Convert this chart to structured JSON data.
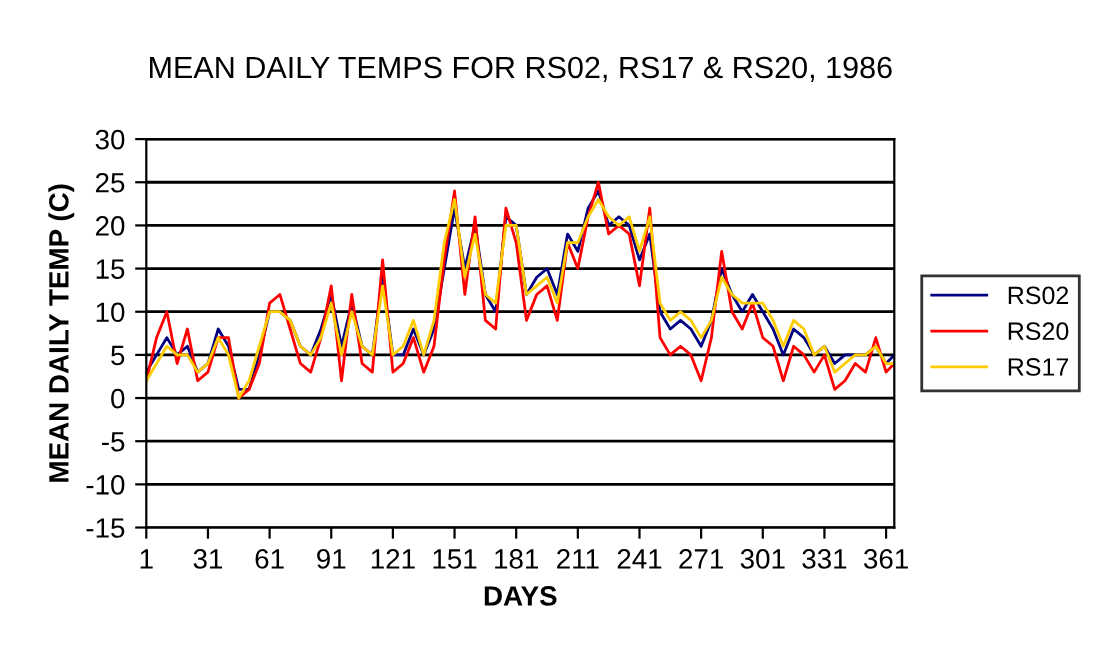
{
  "chart_data": {
    "type": "line",
    "title": "MEAN DAILY TEMPS FOR RS02, RS17 & RS20, 1986",
    "xlabel": "DAYS",
    "ylabel": "MEAN DAILY TEMP (C)",
    "x": [
      1,
      6,
      11,
      16,
      21,
      26,
      31,
      36,
      41,
      46,
      51,
      56,
      61,
      66,
      71,
      76,
      81,
      86,
      91,
      96,
      101,
      106,
      111,
      116,
      121,
      126,
      131,
      136,
      141,
      146,
      151,
      156,
      161,
      166,
      171,
      176,
      181,
      186,
      191,
      196,
      201,
      206,
      211,
      216,
      221,
      226,
      231,
      236,
      241,
      246,
      251,
      256,
      261,
      266,
      271,
      276,
      281,
      286,
      291,
      296,
      301,
      306,
      311,
      316,
      321,
      326,
      331,
      336,
      341,
      346,
      351,
      356,
      361,
      365
    ],
    "series": [
      {
        "name": "RS02",
        "color": "#000080",
        "values": [
          3,
          5,
          7,
          5,
          6,
          3,
          4,
          8,
          6,
          1,
          1,
          5,
          10,
          10,
          9,
          6,
          5,
          8,
          12,
          6,
          11,
          6,
          5,
          14,
          5,
          5,
          8,
          5,
          8,
          15,
          22,
          15,
          20,
          12,
          10,
          21,
          20,
          12,
          14,
          15,
          12,
          19,
          17,
          22,
          24,
          20,
          21,
          20,
          16,
          19,
          10,
          8,
          9,
          8,
          6,
          9,
          15,
          12,
          10,
          12,
          10,
          8,
          5,
          8,
          7,
          5,
          6,
          4,
          5,
          5,
          5,
          6,
          4,
          5
        ]
      },
      {
        "name": "RS20",
        "color": "#ff0000",
        "values": [
          2,
          7,
          10,
          4,
          8,
          2,
          3,
          7,
          7,
          0,
          1,
          4,
          11,
          12,
          8,
          4,
          3,
          7,
          13,
          2,
          12,
          4,
          3,
          16,
          3,
          4,
          7,
          3,
          6,
          16,
          24,
          12,
          21,
          9,
          8,
          22,
          18,
          9,
          12,
          13,
          9,
          18,
          15,
          21,
          25,
          19,
          20,
          19,
          13,
          22,
          7,
          5,
          6,
          5,
          2,
          7,
          17,
          10,
          8,
          11,
          7,
          6,
          2,
          6,
          5,
          3,
          5,
          1,
          2,
          4,
          3,
          7,
          3,
          4
        ]
      },
      {
        "name": "RS17",
        "color": "#ffcc00",
        "values": [
          2,
          4,
          6,
          5,
          5,
          3,
          4,
          7,
          5,
          0,
          2,
          6,
          10,
          10,
          9,
          6,
          5,
          7,
          11,
          5,
          10,
          6,
          5,
          13,
          5,
          6,
          9,
          5,
          9,
          18,
          23,
          14,
          19,
          12,
          11,
          20,
          20,
          12,
          13,
          14,
          11,
          18,
          18,
          21,
          23,
          21,
          20,
          21,
          17,
          21,
          11,
          9,
          10,
          9,
          7,
          9,
          14,
          12,
          11,
          11,
          11,
          9,
          6,
          9,
          8,
          5,
          6,
          3,
          4,
          5,
          5,
          6,
          4,
          4
        ]
      }
    ],
    "xlim": [
      1,
      365
    ],
    "xticks": [
      1,
      31,
      61,
      91,
      121,
      151,
      181,
      211,
      241,
      271,
      301,
      331,
      361
    ],
    "ylim": [
      -15,
      30
    ],
    "yticks": [
      -15,
      -10,
      -5,
      0,
      5,
      10,
      15,
      20,
      25,
      30
    ],
    "grid": "y",
    "legend": "right",
    "marker": "none",
    "line_style": "solid"
  }
}
